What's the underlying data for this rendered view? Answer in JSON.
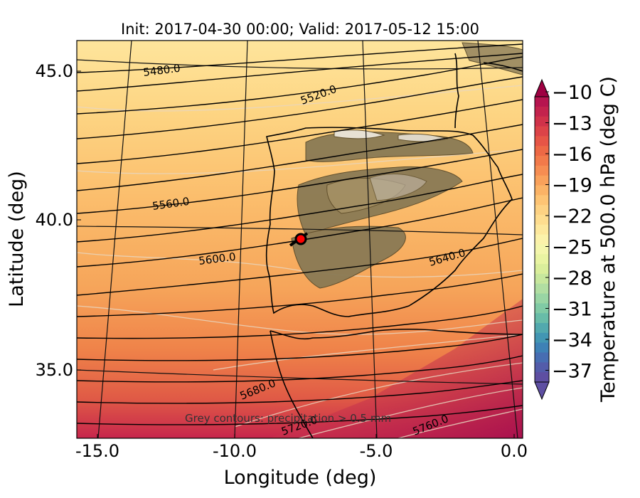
{
  "title": "Init: 2017-04-30 00:00; Valid: 2017-05-12 15:00",
  "xlabel": "Longitude (deg)",
  "ylabel": "Latitude (deg)",
  "x_ticks": [
    "-15.0",
    "-10.0",
    "-5.0",
    "0.0"
  ],
  "y_ticks": [
    "45.0",
    "40.0",
    "35.0"
  ],
  "colorbar": {
    "label": "Temperature at 500.0 hPa (deg C)",
    "ticks": [
      "−10",
      "−13",
      "−16",
      "−19",
      "−22",
      "−25",
      "−28",
      "−31",
      "−34",
      "−37"
    ],
    "colors": [
      "#b6154f",
      "#c3234d",
      "#d0324a",
      "#dc4348",
      "#e65546",
      "#ed6845",
      "#f27a4a",
      "#f68d52",
      "#f9a15b",
      "#fbb366",
      "#fdc474",
      "#fdd283",
      "#fedd8f",
      "#fde89d",
      "#fbf2aa",
      "#f4f6ac",
      "#e9f4a2",
      "#daee9b",
      "#c7e79d",
      "#b1dea2",
      "#99d5a4",
      "#80caa5",
      "#68bca8",
      "#52a9ae",
      "#4296b3",
      "#3e81b6",
      "#476db2",
      "#535caa",
      "#5e4fa2"
    ]
  },
  "height_labels": [
    "5480.0",
    "5520.0",
    "5560.0",
    "5600.0",
    "5640.0",
    "5680.0",
    "5720.0",
    "5760.0"
  ],
  "note": "Grey contours: precipitation > 0.5 mm",
  "colors": {
    "cold_top": "#fee6a0",
    "warm_bottom": "#b01550",
    "terrain": "#8a7a55",
    "marker": "#ff0000"
  }
}
